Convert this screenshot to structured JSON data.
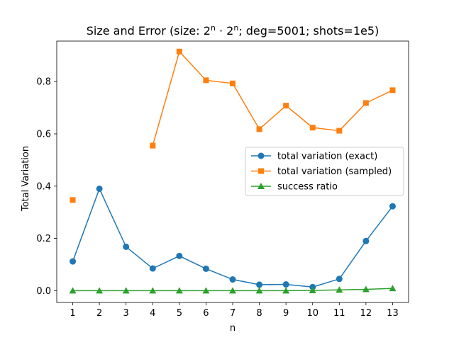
{
  "chart_data": {
    "type": "line",
    "title": "Size and Error (size: ",
    "title_base1": "2",
    "title_exp1": "n",
    "title_dot": " · ",
    "title_base2": "2",
    "title_exp2": "n",
    "title_rest": "; deg=5001; shots=1e5)",
    "xlabel": "n",
    "ylabel": "Total Variation",
    "x": [
      1,
      2,
      3,
      4,
      5,
      6,
      7,
      8,
      9,
      10,
      11,
      12,
      13
    ],
    "xlim": [
      0.4,
      13.6
    ],
    "ylim": [
      -0.045,
      0.955
    ],
    "yticks": [
      0.0,
      0.2,
      0.4,
      0.6,
      0.8
    ],
    "ytick_labels": [
      "0.0",
      "0.2",
      "0.4",
      "0.6",
      "0.8"
    ],
    "xtick_labels": [
      "1",
      "2",
      "3",
      "4",
      "5",
      "6",
      "7",
      "8",
      "9",
      "10",
      "11",
      "12",
      "13"
    ],
    "legend_position": "center-right",
    "grid": false,
    "series": [
      {
        "name": "total variation (exact)",
        "color": "#1f77b4",
        "marker": "circle",
        "values": [
          0.112,
          0.39,
          0.168,
          0.085,
          0.133,
          0.084,
          0.043,
          0.023,
          0.024,
          0.014,
          0.045,
          0.19,
          0.323
        ]
      },
      {
        "name": "total variation (sampled)",
        "color": "#ff7f0e",
        "marker": "square",
        "values": [
          0.347,
          null,
          null,
          0.555,
          0.915,
          0.805,
          0.793,
          0.618,
          0.708,
          0.624,
          0.612,
          0.718,
          0.767
        ]
      },
      {
        "name": "success ratio",
        "color": "#2ca02c",
        "marker": "triangle",
        "values": [
          0.0,
          0.0,
          0.0,
          0.0,
          0.0,
          0.0,
          0.0,
          0.0,
          0.0,
          0.001,
          0.003,
          0.005,
          0.009
        ]
      }
    ]
  }
}
